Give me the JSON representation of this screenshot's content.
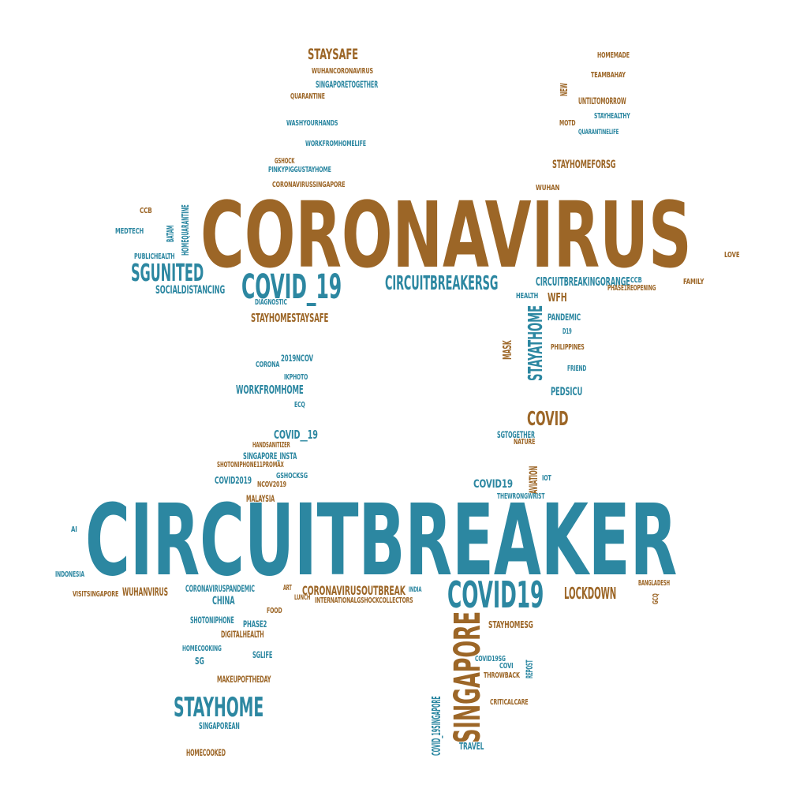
{
  "colors": {
    "orange": "#9c6627",
    "teal": "#2c87a1"
  },
  "words": [
    {
      "text": "CIRCUITBREAKER",
      "color": "teal"
    },
    {
      "text": "CORONAVIRUS",
      "color": "orange"
    },
    {
      "text": "COVID19",
      "color": "teal"
    },
    {
      "text": "SINGAPORE",
      "color": "orange"
    },
    {
      "text": "COVID_19",
      "color": "teal"
    },
    {
      "text": "STAYHOME",
      "color": "teal"
    },
    {
      "text": "SGUNITED",
      "color": "teal"
    },
    {
      "text": "CIRCUITBREAKERSG",
      "color": "teal"
    },
    {
      "text": "COVID",
      "color": "orange"
    },
    {
      "text": "STAYATHOME",
      "color": "teal"
    },
    {
      "text": "LOCKDOWN",
      "color": "orange"
    },
    {
      "text": "STAYSAFE",
      "color": "orange"
    },
    {
      "text": "CORONAVIRUSOUTBREAK",
      "color": "orange"
    },
    {
      "text": "CIRCUITBREAKINGORANGE",
      "color": "teal"
    },
    {
      "text": "WORKFROMHOME",
      "color": "teal"
    },
    {
      "text": "SOCIALDISTANCING",
      "color": "teal"
    },
    {
      "text": "STAYHOMESTAYSAFE",
      "color": "orange"
    },
    {
      "text": "WFH",
      "color": "orange"
    },
    {
      "text": "COVID__19",
      "color": "teal"
    },
    {
      "text": "WUHANVIRUS",
      "color": "orange"
    },
    {
      "text": "CHINA",
      "color": "teal"
    },
    {
      "text": "STAYHOMEFORSG",
      "color": "orange"
    },
    {
      "text": "COVID19",
      "color": "teal"
    },
    {
      "text": "PEDSICU",
      "color": "teal"
    },
    {
      "text": "STAYHOMESG",
      "color": "orange"
    },
    {
      "text": "TRAVEL",
      "color": "teal"
    },
    {
      "text": "SG",
      "color": "teal"
    },
    {
      "text": "COVID2019",
      "color": "teal"
    },
    {
      "text": "SINGAPOREAN",
      "color": "teal"
    },
    {
      "text": "HOMECOOKED",
      "color": "orange"
    },
    {
      "text": "MAKEUPOFTHEDAY",
      "color": "orange"
    },
    {
      "text": "SGLIFE",
      "color": "teal"
    },
    {
      "text": "DIGITALHEALTH",
      "color": "orange"
    },
    {
      "text": "PHASE2",
      "color": "teal"
    },
    {
      "text": "SHOTONIPHONE",
      "color": "teal"
    },
    {
      "text": "HOMECOOKING",
      "color": "teal"
    },
    {
      "text": "FOOD",
      "color": "orange"
    },
    {
      "text": "CORONAVIRUSPANDEMIC",
      "color": "teal"
    },
    {
      "text": "VISITSINGAPORE",
      "color": "orange"
    },
    {
      "text": "INDONESIA",
      "color": "teal"
    },
    {
      "text": "AI",
      "color": "teal"
    },
    {
      "text": "MALAYSIA",
      "color": "orange"
    },
    {
      "text": "NCOV2019",
      "color": "orange"
    },
    {
      "text": "GSHOCKSG",
      "color": "teal"
    },
    {
      "text": "SHOTONIPHONE11PROMAX",
      "color": "orange"
    },
    {
      "text": "SINGAPORE_INSTA",
      "color": "teal"
    },
    {
      "text": "HANDSANITIZER",
      "color": "orange"
    },
    {
      "text": "ECQ",
      "color": "teal"
    },
    {
      "text": "IKPHOTO",
      "color": "teal"
    },
    {
      "text": "CORONA",
      "color": "teal"
    },
    {
      "text": "2019NCOV",
      "color": "teal"
    },
    {
      "text": "DIAGNOSTIC",
      "color": "teal"
    },
    {
      "text": "PUBLICHEALTH",
      "color": "teal"
    },
    {
      "text": "MEDTECH",
      "color": "teal"
    },
    {
      "text": "CCB",
      "color": "orange"
    },
    {
      "text": "BATAM",
      "color": "teal"
    },
    {
      "text": "HOMEQUARANTINE",
      "color": "teal"
    },
    {
      "text": "CORONAVIRUSSINGAPORE",
      "color": "orange"
    },
    {
      "text": "PINKYPIGGUSTAYHOME",
      "color": "teal"
    },
    {
      "text": "GSHOCK",
      "color": "orange"
    },
    {
      "text": "WORKFROMHOMELIFE",
      "color": "teal"
    },
    {
      "text": "WASHYOURHANDS",
      "color": "teal"
    },
    {
      "text": "QUARANTINE",
      "color": "orange"
    },
    {
      "text": "SINGAPORETOGETHER",
      "color": "teal"
    },
    {
      "text": "WUHANCORONAVIRUS",
      "color": "orange"
    },
    {
      "text": "HOMEMADE",
      "color": "orange"
    },
    {
      "text": "TEAMBAHAY",
      "color": "orange"
    },
    {
      "text": "NEW",
      "color": "orange"
    },
    {
      "text": "UNTILTOMORROW",
      "color": "orange"
    },
    {
      "text": "STAYHEALTHY",
      "color": "teal"
    },
    {
      "text": "MOTD",
      "color": "orange"
    },
    {
      "text": "QUARANTINELIFE",
      "color": "teal"
    },
    {
      "text": "WUHAN",
      "color": "orange"
    },
    {
      "text": "LOVE",
      "color": "orange"
    },
    {
      "text": "FAMILY",
      "color": "orange"
    },
    {
      "text": "CCB",
      "color": "teal"
    },
    {
      "text": "PHASE1REOPENING",
      "color": "orange"
    },
    {
      "text": "HEALTH",
      "color": "teal"
    },
    {
      "text": "PANDEMIC",
      "color": "teal"
    },
    {
      "text": "D19",
      "color": "teal"
    },
    {
      "text": "MASK",
      "color": "orange"
    },
    {
      "text": "PHILIPPINES",
      "color": "orange"
    },
    {
      "text": "FRIEND",
      "color": "teal"
    },
    {
      "text": "SGTOGETHER",
      "color": "teal"
    },
    {
      "text": "NATURE",
      "color": "orange"
    },
    {
      "text": "AVIATION",
      "color": "orange"
    },
    {
      "text": "IOT",
      "color": "teal"
    },
    {
      "text": "THEWRONGWRIST",
      "color": "teal"
    },
    {
      "text": "BANGLADESH",
      "color": "orange"
    },
    {
      "text": "GCQ",
      "color": "orange"
    },
    {
      "text": "ART",
      "color": "orange"
    },
    {
      "text": "LUNCH",
      "color": "orange"
    },
    {
      "text": "INTERNATIONALGSHOCKCOLLECTORS",
      "color": "orange"
    },
    {
      "text": "INDIA",
      "color": "teal"
    },
    {
      "text": "COVID19SG",
      "color": "teal"
    },
    {
      "text": "COVI",
      "color": "teal"
    },
    {
      "text": "THROWBACK",
      "color": "orange"
    },
    {
      "text": "REPOST",
      "color": "teal"
    },
    {
      "text": "CRITICALCARE",
      "color": "orange"
    },
    {
      "text": "COVID_19SINGAPORE",
      "color": "teal"
    }
  ]
}
